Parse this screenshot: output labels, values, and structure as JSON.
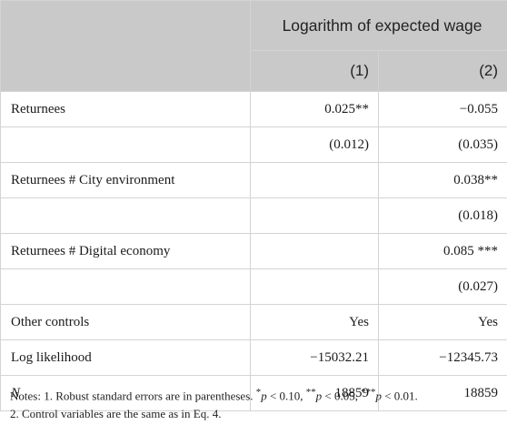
{
  "table": {
    "group_header": "Logarithm of expected wage",
    "columns": [
      "(1)",
      "(2)"
    ],
    "rows": [
      {
        "label": "Returnees",
        "c1": "0.025**",
        "c2": "−0.055"
      },
      {
        "label": "",
        "c1": "(0.012)",
        "c2": "(0.035)"
      },
      {
        "label": "Returnees # City environment",
        "c1": "",
        "c2": "0.038**"
      },
      {
        "label": "",
        "c1": "",
        "c2": "(0.018)"
      },
      {
        "label": "Returnees # Digital economy",
        "c1": "",
        "c2": "0.085 ***"
      },
      {
        "label": "",
        "c1": "",
        "c2": "(0.027)"
      },
      {
        "label": "Other controls",
        "c1": "Yes",
        "c2": "Yes"
      },
      {
        "label": "Log likelihood",
        "c1": "−15032.21",
        "c2": "−12345.73"
      },
      {
        "label": "N",
        "c1": "18859",
        "c2": "18859"
      }
    ]
  },
  "notes": {
    "line1_prefix": "Notes: 1. Robust standard errors are in parentheses. ",
    "p1_stars": "*",
    "p1_text": " < 0.10, ",
    "p2_stars": "**",
    "p2_text": " < 0.05, ",
    "p3_stars": "***",
    "p3_text": " < 0.01.",
    "p_symbol": "p",
    "line2": "2. Control variables are the same as in Eq. 4."
  }
}
